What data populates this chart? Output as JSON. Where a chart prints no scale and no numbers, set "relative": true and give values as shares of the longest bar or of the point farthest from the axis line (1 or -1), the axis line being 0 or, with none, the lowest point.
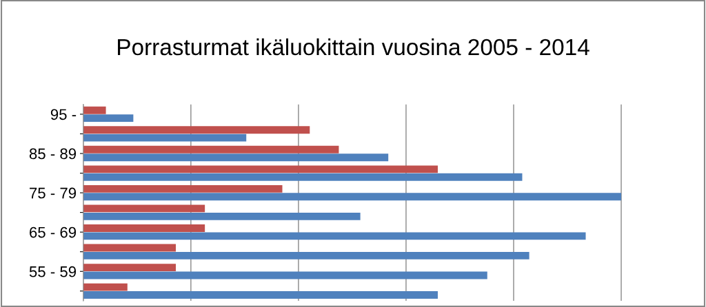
{
  "chart_data": {
    "type": "bar",
    "orientation": "horizontal",
    "relative": true,
    "title": "Porrasturmat ikäluokittain vuosina 2005 - 2014",
    "categories": [
      "95 -",
      null,
      "85 - 89",
      null,
      "75 - 79",
      null,
      "65 - 69",
      null,
      "55 - 59",
      null
    ],
    "series": [
      {
        "color": "#c0504d",
        "values": [
          0.042,
          0.421,
          0.475,
          0.659,
          0.37,
          0.226,
          0.226,
          0.172,
          0.172,
          0.082
        ]
      },
      {
        "color": "#4f81bd",
        "values": [
          0.093,
          0.303,
          0.567,
          0.816,
          1.0,
          0.515,
          0.934,
          0.829,
          0.751,
          0.659
        ]
      }
    ],
    "grid": "x"
  }
}
